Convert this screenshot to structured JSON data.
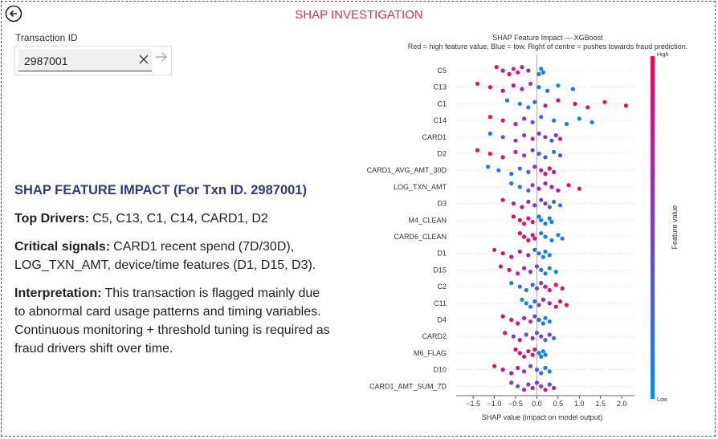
{
  "header": {
    "title": "SHAP INVESTIGATION"
  },
  "input": {
    "label": "Transaction ID",
    "value": "2987001"
  },
  "summary": {
    "heading": "SHAP FEATURE IMPACT (For Txn ID. 2987001)",
    "paragraphs": [
      {
        "label": "Top Drivers:",
        "text": "C5, C13, C1, C14, CARD1, D2"
      },
      {
        "label": "Critical signals:",
        "text": "CARD1 recent spend (7D/30D), LOG_TXN_AMT, device/time features (D1, D15, D3)."
      },
      {
        "label": "Interpretation:",
        "text": "This transaction is flagged mainly due to abnormal card usage patterns and timing variables. Continuous monitoring + threshold tuning is required as fraud drivers shift over time."
      }
    ]
  },
  "chart_data": {
    "type": "beeswarm",
    "title": "SHAP Feature Impact — XGBoost",
    "subtitle": "Red = high feature value, Blue = low. Right of centre = pushes towards fraud prediction.",
    "x_label": "SHAP value (impact on model output)",
    "colorbar_label": "Feature value",
    "colorbar_high": "High",
    "colorbar_low": "Low",
    "low_color": "#008bfb",
    "mid_color": "#7b3cd6",
    "high_color": "#ff0052",
    "xlim": [
      -1.9,
      2.3
    ],
    "xticks": [
      {
        "value": -1.5,
        "label": "−1.5"
      },
      {
        "value": -1.0,
        "label": "−1.0"
      },
      {
        "value": -0.5,
        "label": "−0.5"
      },
      {
        "value": 0,
        "label": "0.0"
      },
      0.5,
      {
        "value": 1.0,
        "label": "1.0"
      },
      1.5,
      {
        "value": 2.0,
        "label": "2.0"
      }
    ],
    "series": [
      {
        "name": "C5",
        "values": [
          -0.95,
          -0.8,
          -0.65,
          -0.55,
          -0.45,
          -0.35,
          -0.2,
          0.05,
          0.1,
          0.15
        ],
        "feature_values": [
          0.9,
          0.8,
          0.85,
          0.7,
          0.9,
          0.75,
          0.6,
          0.1,
          0.05,
          0.1
        ]
      },
      {
        "name": "C13",
        "values": [
          -1.4,
          -1.1,
          -0.8,
          -0.55,
          -0.35,
          -0.15,
          0.05,
          0.25,
          0.5,
          0.85
        ],
        "feature_values": [
          0.9,
          0.95,
          0.85,
          0.8,
          0.7,
          0.5,
          0.1,
          0.1,
          0.05,
          0.1
        ]
      },
      {
        "name": "C1",
        "values": [
          -0.7,
          -0.4,
          -0.2,
          -0.05,
          0.2,
          0.5,
          0.9,
          1.2,
          1.6,
          2.1
        ],
        "feature_values": [
          0.05,
          0.1,
          0.1,
          0.2,
          0.7,
          0.85,
          0.9,
          0.95,
          0.9,
          0.95
        ]
      },
      {
        "name": "C14",
        "values": [
          -1.1,
          -0.8,
          -0.5,
          -0.3,
          -0.1,
          0.1,
          0.4,
          0.7,
          1.0,
          1.3
        ],
        "feature_values": [
          0.95,
          0.9,
          0.8,
          0.6,
          0.4,
          0.2,
          0.1,
          0.05,
          0.05,
          0.05
        ]
      },
      {
        "name": "CARD1",
        "values": [
          -1.1,
          -0.8,
          -0.5,
          -0.3,
          -0.1,
          0.05,
          0.2,
          0.35,
          0.45,
          0.55
        ],
        "feature_values": [
          0.1,
          0.3,
          0.6,
          0.5,
          0.7,
          0.4,
          0.6,
          0.3,
          0.5,
          0.8
        ]
      },
      {
        "name": "D2",
        "values": [
          -1.4,
          -1.1,
          -0.8,
          -0.5,
          -0.3,
          -0.1,
          0.05,
          0.2,
          0.4,
          0.55
        ],
        "feature_values": [
          0.9,
          0.95,
          0.85,
          0.8,
          0.6,
          0.5,
          0.3,
          0.2,
          0.1,
          0.5
        ]
      },
      {
        "name": "CARD1_AVG_AMT_30D",
        "values": [
          -1.15,
          -0.9,
          -0.6,
          -0.4,
          -0.2,
          -0.05,
          0.1,
          0.2,
          0.3,
          0.4
        ],
        "feature_values": [
          0.05,
          0.1,
          0.1,
          0.15,
          0.3,
          0.6,
          0.8,
          0.85,
          0.9,
          0.9
        ]
      },
      {
        "name": "LOG_TXN_AMT",
        "values": [
          -0.6,
          -0.4,
          -0.2,
          -0.1,
          0.05,
          0.2,
          0.35,
          0.5,
          0.75,
          1.0
        ],
        "feature_values": [
          0.1,
          0.2,
          0.3,
          0.5,
          0.6,
          0.7,
          0.8,
          0.85,
          0.9,
          0.95
        ]
      },
      {
        "name": "D3",
        "values": [
          -0.8,
          -0.55,
          -0.35,
          -0.2,
          -0.05,
          0.1,
          0.2,
          0.3,
          0.4,
          0.55
        ],
        "feature_values": [
          0.9,
          0.85,
          0.8,
          0.7,
          0.6,
          0.5,
          0.6,
          0.3,
          0.2,
          0.1
        ]
      },
      {
        "name": "M4_CLEAN",
        "values": [
          -0.55,
          -0.4,
          -0.3,
          -0.2,
          -0.1,
          0.05,
          0.1,
          0.2,
          0.3,
          0.35
        ],
        "feature_values": [
          0.95,
          0.95,
          0.9,
          0.9,
          0.8,
          0.1,
          0.05,
          0.1,
          0.05,
          0.1
        ]
      },
      {
        "name": "CARD6_CLEAN",
        "values": [
          -0.4,
          -0.3,
          -0.2,
          -0.1,
          -0.05,
          0.1,
          0.2,
          0.35,
          0.5,
          0.6
        ],
        "feature_values": [
          0.95,
          0.95,
          0.9,
          0.9,
          0.85,
          0.1,
          0.05,
          0.05,
          0.05,
          0.1
        ]
      },
      {
        "name": "D1",
        "values": [
          -1.0,
          -0.8,
          -0.6,
          -0.4,
          -0.2,
          -0.05,
          0.05,
          0.15,
          0.2,
          0.3
        ],
        "feature_values": [
          0.9,
          0.9,
          0.85,
          0.8,
          0.7,
          0.3,
          0.1,
          0.05,
          0.1,
          0.05
        ]
      },
      {
        "name": "D15",
        "values": [
          -0.85,
          -0.65,
          -0.45,
          -0.3,
          -0.15,
          0.0,
          0.1,
          0.2,
          0.3,
          0.45
        ],
        "feature_values": [
          0.9,
          0.85,
          0.8,
          0.75,
          0.6,
          0.4,
          0.2,
          0.1,
          0.1,
          0.05
        ]
      },
      {
        "name": "C2",
        "values": [
          -0.6,
          -0.4,
          -0.25,
          -0.1,
          0.0,
          0.1,
          0.2,
          0.3,
          0.45,
          0.6
        ],
        "feature_values": [
          0.05,
          0.1,
          0.1,
          0.2,
          0.4,
          0.6,
          0.8,
          0.85,
          0.9,
          0.9
        ]
      },
      {
        "name": "C11",
        "values": [
          -0.35,
          -0.25,
          -0.15,
          -0.05,
          0.05,
          0.15,
          0.3,
          0.45,
          0.55,
          0.7
        ],
        "feature_values": [
          0.05,
          0.05,
          0.1,
          0.2,
          0.4,
          0.7,
          0.85,
          0.9,
          0.9,
          0.95
        ]
      },
      {
        "name": "D4",
        "values": [
          -0.8,
          -0.6,
          -0.45,
          -0.3,
          -0.15,
          -0.05,
          0.05,
          0.15,
          0.2,
          0.3
        ],
        "feature_values": [
          0.95,
          0.9,
          0.85,
          0.8,
          0.6,
          0.4,
          0.2,
          0.1,
          0.05,
          0.1
        ]
      },
      {
        "name": "CARD2",
        "values": [
          -0.75,
          -0.55,
          -0.4,
          -0.25,
          -0.1,
          0.0,
          0.1,
          0.2,
          0.3,
          0.4
        ],
        "feature_values": [
          0.9,
          0.6,
          0.8,
          0.4,
          0.7,
          0.3,
          0.5,
          0.2,
          0.6,
          0.1
        ]
      },
      {
        "name": "M6_FLAG",
        "values": [
          -0.5,
          -0.4,
          -0.3,
          -0.2,
          -0.1,
          -0.05,
          0.05,
          0.1,
          0.15,
          0.2
        ],
        "feature_values": [
          0.95,
          0.95,
          0.9,
          0.9,
          0.85,
          0.8,
          0.1,
          0.05,
          0.05,
          0.1
        ]
      },
      {
        "name": "D10",
        "values": [
          -1.0,
          -0.8,
          -0.6,
          -0.45,
          -0.3,
          -0.15,
          0.0,
          0.1,
          0.2,
          0.3
        ],
        "feature_values": [
          0.95,
          0.9,
          0.85,
          0.8,
          0.7,
          0.5,
          0.3,
          0.2,
          0.1,
          0.05
        ]
      },
      {
        "name": "CARD1_AMT_SUM_7D",
        "values": [
          -0.6,
          -0.45,
          -0.3,
          -0.2,
          -0.1,
          0.0,
          0.1,
          0.2,
          0.3,
          0.4
        ],
        "feature_values": [
          0.5,
          0.3,
          0.6,
          0.4,
          0.7,
          0.5,
          0.6,
          0.8,
          0.4,
          0.9
        ]
      }
    ]
  }
}
